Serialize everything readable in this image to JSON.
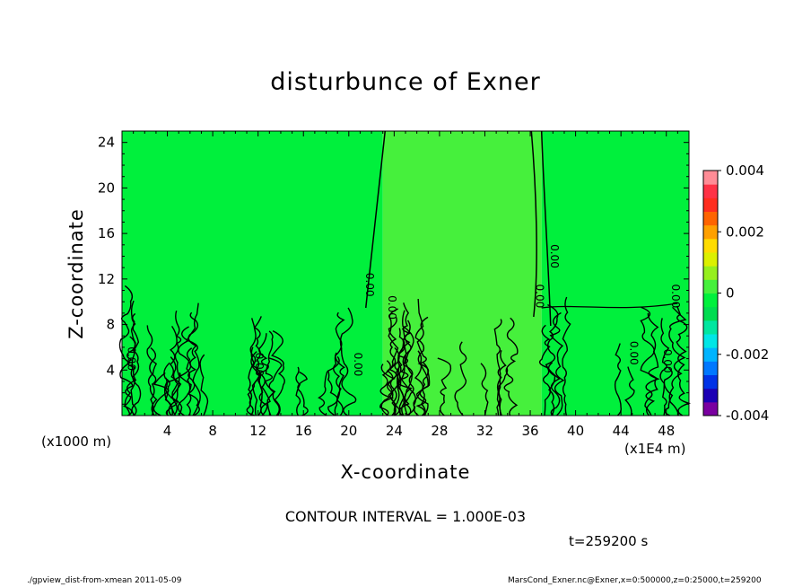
{
  "header": {
    "title": "disturbunce of Exner"
  },
  "chart_data": {
    "type": "heatmap",
    "title": "disturbunce of Exner",
    "xlabel": "X-coordinate",
    "ylabel": "Z-coordinate",
    "x_unit_left": "(x1000 m)",
    "x_unit_right": "(x1E4 m)",
    "xlim": [
      0,
      50
    ],
    "ylim": [
      0,
      25
    ],
    "x_ticks": [
      4,
      8,
      12,
      16,
      20,
      24,
      28,
      32,
      36,
      40,
      44,
      48
    ],
    "y_ticks": [
      4,
      8,
      12,
      16,
      20,
      24
    ],
    "colorbar": {
      "range": [
        -0.004,
        0.004
      ],
      "tick_labels": [
        "0.004",
        "0.002",
        "0",
        "-0.002",
        "-0.004"
      ],
      "colors": [
        "#7a00a0",
        "#1c00b4",
        "#0032e6",
        "#0078ff",
        "#00b4ff",
        "#00e6e6",
        "#00e6a0",
        "#00dc50",
        "#00f03c",
        "#46f03c",
        "#96ef1e",
        "#dcf000",
        "#ffdc00",
        "#ffa000",
        "#ff6400",
        "#ff2d1e",
        "#ff3246",
        "#ff8c96"
      ]
    },
    "regions": [
      {
        "name": "x 0 to ~23",
        "value": -0.0002,
        "color": "#00f03c"
      },
      {
        "name": "x ~23 to ~37",
        "value": 0.0003,
        "color": "#46f03c"
      },
      {
        "name": "x ~37 to 50",
        "value": -0.0002,
        "color": "#00f03c"
      }
    ],
    "contour_labels": [
      "0.00",
      "0.00",
      "0.00",
      "0.00",
      "0.00",
      "0.00",
      "0.00",
      "0.00",
      "0.00",
      "0.00"
    ],
    "contour_interval": "CONTOUR INTERVAL = 1.000E-03",
    "time": "t=259200 s"
  },
  "footer": {
    "left": "./gpview_dist-from-xmean  2011-05-09",
    "right": "MarsCond_Exner.nc@Exner,x=0:500000,z=0:25000,t=259200"
  }
}
